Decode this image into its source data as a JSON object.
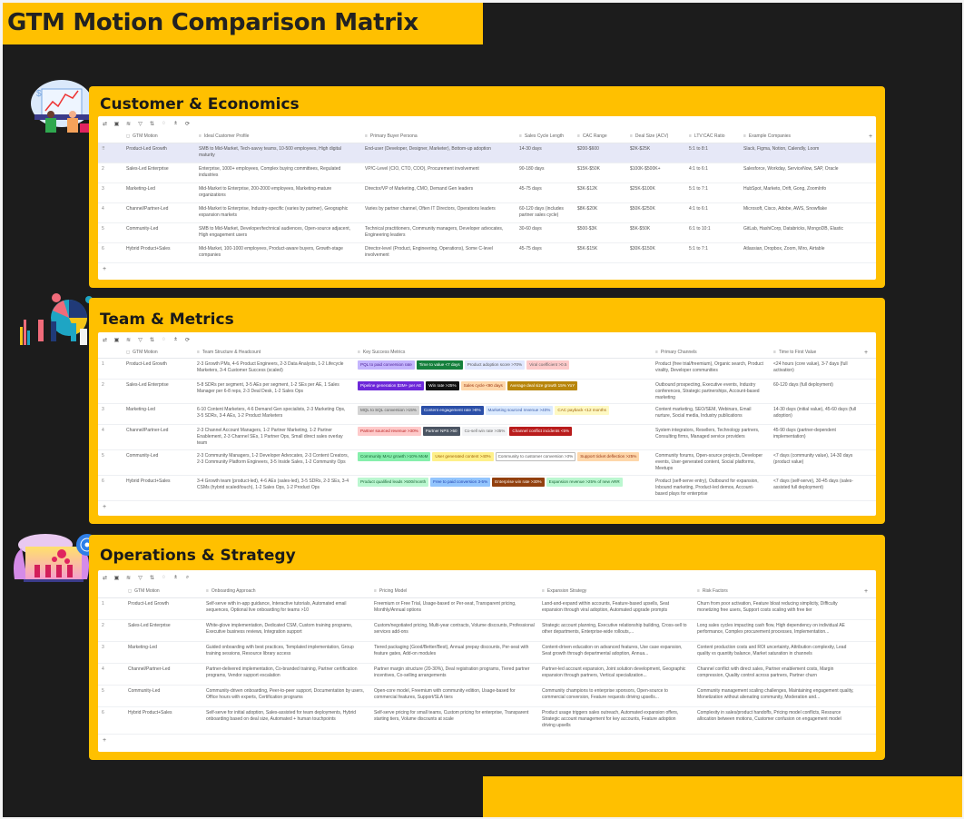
{
  "title": "GTM Motion Comparison Matrix",
  "colors": {
    "accent": "#ffc000",
    "board": "#1c1c1c",
    "selected_row": "#e6e8f7"
  },
  "toolbar_icons": [
    "refresh-icon",
    "layout-icon",
    "group-icon",
    "filter-icon",
    "sort-icon",
    "hide-icon",
    "row-height-icon",
    "search-icon"
  ],
  "sections": [
    {
      "title": "Customer & Economics",
      "toolbar_glyphs": [
        "⇄",
        "▣",
        "≋",
        "▽",
        "⇅",
        "◌",
        "±",
        "⟳"
      ],
      "columns": [
        "GTM Motion",
        "Ideal Customer Profile",
        "Primary Buyer Persona",
        "Sales Cycle Length",
        "CAC Range",
        "Deal Size (ACV)",
        "LTV:CAC Ratio",
        "Example Companies"
      ],
      "selected_row": 0,
      "rows": [
        [
          "Product-Led Growth",
          "SMB to Mid-Market, Tech-savvy teams, 10-500 employees, High digital maturity",
          "End-user (Developer, Designer, Marketer), Bottom-up adoption",
          "14-30 days",
          "$200-$600",
          "$2K-$25K",
          "5:1 to 8:1",
          "Slack, Figma, Notion, Calendly, Loom"
        ],
        [
          "Sales-Led Enterprise",
          "Enterprise, 1000+ employees, Complex buying committees, Regulated industries",
          "VP/C-Level (CIO, CTO, COO), Procurement involvement",
          "90-180 days",
          "$15K-$50K",
          "$100K-$500K+",
          "4:1 to 6:1",
          "Salesforce, Workday, ServiceNow, SAP, Oracle"
        ],
        [
          "Marketing-Led",
          "Mid-Market to Enterprise, 200-2000 employees, Marketing-mature organizations",
          "Director/VP of Marketing, CMO, Demand Gen leaders",
          "45-75 days",
          "$3K-$12K",
          "$25K-$100K",
          "5:1 to 7:1",
          "HubSpot, Marketo, Drift, Gong, ZoomInfo"
        ],
        [
          "Channel/Partner-Led",
          "Mid-Market to Enterprise, Industry-specific (varies by partner), Geographic expansion markets",
          "Varies by partner channel, Often IT Directors, Operations leaders",
          "60-120 days (includes partner sales cycle)",
          "$8K-$20K",
          "$50K-$250K",
          "4:1 to 6:1",
          "Microsoft, Cisco, Adobe, AWS, Snowflake"
        ],
        [
          "Community-Led",
          "SMB to Mid-Market, Developer/technical audiences, Open-source adjacent, High engagement users",
          "Technical practitioners, Community managers, Developer advocates, Engineering leaders",
          "30-60 days",
          "$500-$3K",
          "$5K-$50K",
          "6:1 to 10:1",
          "GitLab, HashiCorp, Databricks, MongoDB, Elastic"
        ],
        [
          "Hybrid Product+Sales",
          "Mid-Market, 100-1000 employees, Product-aware buyers, Growth-stage companies",
          "Director-level (Product, Engineering, Operations), Some C-level involvement",
          "45-75 days",
          "$5K-$15K",
          "$30K-$150K",
          "5:1 to 7:1",
          "Atlassian, Dropbox, Zoom, Miro, Airtable"
        ]
      ]
    },
    {
      "title": "Team & Metrics",
      "toolbar_glyphs": [
        "⇄",
        "▣",
        "≋",
        "▽",
        "⇅",
        "◌",
        "±",
        "⟳"
      ],
      "columns": [
        "GTM Motion",
        "Team Structure & Headcount",
        "Key Success Metrics",
        "Primary Channels",
        "Time to First Value"
      ],
      "rows": [
        [
          "Product-Led Growth",
          "2-3 Growth PMs, 4-6 Product Engineers, 2-3 Data Analysts, 1-2 Lifecycle Marketers, 3-4 Customer Success (scaled)",
          [
            [
              "PQL to paid conversion rate",
              "#c4b5fd",
              "#4c1d95"
            ],
            [
              "Time to value <7 days",
              "#15803d",
              "#ffffff"
            ],
            [
              "Product adoption score >70%",
              "#e0e7ff",
              "#555555"
            ],
            [
              "Viral coefficient >0.5",
              "#fecaca",
              "#666666"
            ]
          ],
          "Product (free trial/freemium), Organic search, Product virality, Developer communities",
          "<24 hours (core value), 3-7 days (full activation)"
        ],
        [
          "Sales-Led Enterprise",
          "5-8 SDRs per segment, 3-5 AEs per segment, 1-2 SEs per AE, 1 Sales Manager per 6-8 reps, 2-3 Deal Desk, 1-2 Sales Ops",
          [
            [
              "Pipeline generation $3M+ per AE",
              "#6d28d9",
              "#ffffff"
            ],
            [
              "Win rate >25%",
              "#111111",
              "#ffffff"
            ],
            [
              "Sales cycle <90 days",
              "#fed7aa",
              "#9a3412"
            ],
            [
              "Average deal size growth 15% YoY",
              "#b8860b",
              "#ffffff"
            ]
          ],
          "Outbound prospecting, Executive events, Industry conferences, Strategic partnerships, Account-based marketing",
          "60-120 days (full deployment)"
        ],
        [
          "Marketing-Led",
          "6-10 Content Marketers, 4-6 Demand Gen specialists, 2-3 Marketing Ops, 3-5 SDRs, 3-4 AEs, 1-2 Product Marketers",
          [
            [
              "MQL to SQL conversion >15%",
              "#d4d4d4",
              "#555555"
            ],
            [
              "Content engagement rate >8%",
              "#2b4fa8",
              "#ffffff"
            ],
            [
              "Marketing sourced revenue >40%",
              "#dbeafe",
              "#3b5ba9"
            ],
            [
              "CAC payback <12 months",
              "#fef9c3",
              "#a16207"
            ]
          ],
          "Content marketing, SEO/SEM, Webinars, Email nurture, Social media, Industry publications",
          "14-30 days (initial value), 45-60 days (full adoption)"
        ],
        [
          "Channel/Partner-Led",
          "2-3 Channel Account Managers, 1-2 Partner Marketing, 1-2 Partner Enablement, 2-3 Channel SEs, 1 Partner Ops, Small direct sales overlay team",
          [
            [
              "Partner sourced revenue >30%",
              "#fecaca",
              "#b91c1c"
            ],
            [
              "Partner NPS >50",
              "#4b5563",
              "#ffffff"
            ],
            [
              "Co-sell win rate >35%",
              "#f3f4f6",
              "#666666"
            ],
            [
              "Channel conflict incidents <5%",
              "#b91c1c",
              "#ffffff"
            ]
          ],
          "System integrators, Resellers, Technology partners, Consulting firms, Managed service providers",
          "45-90 days (partner-dependent implementation)"
        ],
        [
          "Community-Led",
          "2-3 Community Managers, 1-2 Developer Advocates, 2-3 Content Creators, 2-3 Community Platform Engineers, 3-5 Inside Sales, 1-2 Community Ops",
          [
            [
              "Community MAU growth >10% MoM",
              "#86efac",
              "#166534"
            ],
            [
              "User generated content >40%",
              "#fef08a",
              "#a16207"
            ],
            [
              "Community to customer conversion >3%",
              "#ffffff",
              "#555555"
            ],
            [
              "Support ticket deflection >25%",
              "#fed7aa",
              "#9a3412"
            ]
          ],
          "Community forums, Open-source projects, Developer events, User-generated content, Social platforms, Meetups",
          "<7 days (community value), 14-30 days (product value)"
        ],
        [
          "Hybrid Product+Sales",
          "3-4 Growth team (product-led), 4-6 AEs (sales-led), 3-5 SDRs, 2-3 SEs, 3-4 CSMs (hybrid scaled/touch), 1-2 Sales Ops, 1-2 Product Ops",
          [
            [
              "Product qualified leads >500/month",
              "#bbf7d0",
              "#166534"
            ],
            [
              "Free to paid conversion 3-5%",
              "#93c5fd",
              "#1e40af"
            ],
            [
              "Enterprise win rate >30%",
              "#92400e",
              "#ffffff"
            ],
            [
              "Expansion revenue >25% of new ARR",
              "#bbf7d0",
              "#166534"
            ]
          ],
          "Product (self-serve entry), Outbound for expansion, Inbound marketing, Product-led demos, Account-based plays for enterprise",
          "<7 days (self-serve), 30-45 days (sales-assisted full deployment)"
        ]
      ]
    },
    {
      "title": "Operations & Strategy",
      "toolbar_glyphs": [
        "⇄",
        "▣",
        "≋",
        "▽",
        "⇅",
        "◌",
        "±",
        "⌕"
      ],
      "columns": [
        "GTM Motion",
        "Onboarding Approach",
        "Pricing Model",
        "Expansion Strategy",
        "Risk Factors"
      ],
      "rows": [
        [
          "Product-Led Growth",
          "Self-serve with in-app guidance, Interactive tutorials, Automated email sequences, Optional live onboarding for teams >10",
          "Freemium or Free Trial, Usage-based or Per-seat, Transparent pricing, Monthly/Annual options",
          "Land-and-expand within accounts, Feature-based upsells, Seat expansion through viral adoption, Automated upgrade prompts",
          "Churn from poor activation, Feature bloat reducing simplicity, Difficulty monetizing free users, Support costs scaling with free tier"
        ],
        [
          "Sales-Led Enterprise",
          "White-glove implementation, Dedicated CSM, Custom training programs, Executive business reviews, Integration support",
          "Custom/negotiated pricing, Multi-year contracts, Volume discounts, Professional services add-ons",
          "Strategic account planning, Executive relationship building, Cross-sell to other departments, Enterprise-wide rollouts,...",
          "Long sales cycles impacting cash flow, High dependency on individual AE performance, Complex procurement processes, Implementation..."
        ],
        [
          "Marketing-Led",
          "Guided onboarding with best practices, Templated implementation, Group training sessions, Resource library access",
          "Tiered packaging (Good/Better/Best), Annual prepay discounts, Per-seat with feature gates, Add-on modules",
          "Content-driven education on advanced features, Use case expansion, Seat growth through departmental adoption, Annua...",
          "Content production costs and ROI uncertainty, Attribution complexity, Lead quality vs quantity balance, Market saturation in channels"
        ],
        [
          "Channel/Partner-Led",
          "Partner-delivered implementation, Co-branded training, Partner certification programs, Vendor support escalation",
          "Partner margin structure (20-30%), Deal registration programs, Tiered partner incentives, Co-selling arrangements",
          "Partner-led account expansion, Joint solution development, Geographic expansion through partners, Vertical specialization...",
          "Channel conflict with direct sales, Partner enablement costs, Margin compression, Quality control across partners, Partner churn"
        ],
        [
          "Community-Led",
          "Community-driven onboarding, Peer-to-peer support, Documentation by users, Office hours with experts, Certification programs",
          "Open-core model, Freemium with community edition, Usage-based for commercial features, Support/SLA tiers",
          "Community champions to enterprise sponsors, Open-source to commercial conversion, Feature requests driving upsells...",
          "Community management scaling challenges, Maintaining engagement quality, Monetization without alienating community, Moderation and..."
        ],
        [
          "Hybrid Product+Sales",
          "Self-serve for initial adoption, Sales-assisted for team deployments, Hybrid onboarding based on deal size, Automated + human touchpoints",
          "Self-serve pricing for small teams, Custom pricing for enterprise, Transparent starting tiers, Volume discounts at scale",
          "Product usage triggers sales outreach, Automated expansion offers, Strategic account management for key accounts, Feature adoption driving upsells",
          "Complexity in sales/product handoffs, Pricing model conflicts, Resource allocation between motions, Customer confusion on engagement model"
        ]
      ]
    }
  ],
  "add_column_label": "+",
  "add_row_label": "+",
  "row_numbers": [
    "1",
    "2",
    "3",
    "4",
    "5",
    "6"
  ]
}
